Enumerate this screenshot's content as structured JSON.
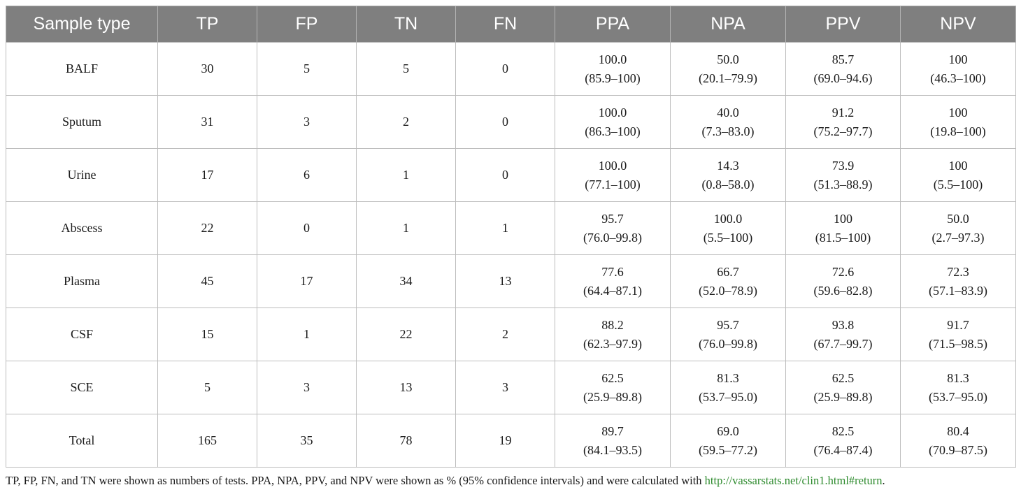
{
  "columns": [
    "Sample type",
    "TP",
    "FP",
    "TN",
    "FN",
    "PPA",
    "NPA",
    "PPV",
    "NPV"
  ],
  "rows": [
    {
      "sample": "BALF",
      "tp": "30",
      "fp": "5",
      "tn": "5",
      "fn": "0",
      "ppa": {
        "v": "100.0",
        "ci": "(85.9–100)"
      },
      "npa": {
        "v": "50.0",
        "ci": "(20.1–79.9)"
      },
      "ppv": {
        "v": "85.7",
        "ci": "(69.0–94.6)"
      },
      "npv": {
        "v": "100",
        "ci": "(46.3–100)"
      }
    },
    {
      "sample": "Sputum",
      "tp": "31",
      "fp": "3",
      "tn": "2",
      "fn": "0",
      "ppa": {
        "v": "100.0",
        "ci": "(86.3–100)"
      },
      "npa": {
        "v": "40.0",
        "ci": "(7.3–83.0)"
      },
      "ppv": {
        "v": "91.2",
        "ci": "(75.2–97.7)"
      },
      "npv": {
        "v": "100",
        "ci": "(19.8–100)"
      }
    },
    {
      "sample": "Urine",
      "tp": "17",
      "fp": "6",
      "tn": "1",
      "fn": "0",
      "ppa": {
        "v": "100.0",
        "ci": "(77.1–100)"
      },
      "npa": {
        "v": "14.3",
        "ci": "(0.8–58.0)"
      },
      "ppv": {
        "v": "73.9",
        "ci": "(51.3–88.9)"
      },
      "npv": {
        "v": "100",
        "ci": "(5.5–100)"
      }
    },
    {
      "sample": "Abscess",
      "tp": "22",
      "fp": "0",
      "tn": "1",
      "fn": "1",
      "ppa": {
        "v": "95.7",
        "ci": "(76.0–99.8)"
      },
      "npa": {
        "v": "100.0",
        "ci": "(5.5–100)"
      },
      "ppv": {
        "v": "100",
        "ci": "(81.5–100)"
      },
      "npv": {
        "v": "50.0",
        "ci": "(2.7–97.3)"
      }
    },
    {
      "sample": "Plasma",
      "tp": "45",
      "fp": "17",
      "tn": "34",
      "fn": "13",
      "ppa": {
        "v": "77.6",
        "ci": "(64.4–87.1)"
      },
      "npa": {
        "v": "66.7",
        "ci": "(52.0–78.9)"
      },
      "ppv": {
        "v": "72.6",
        "ci": "(59.6–82.8)"
      },
      "npv": {
        "v": "72.3",
        "ci": "(57.1–83.9)"
      }
    },
    {
      "sample": "CSF",
      "tp": "15",
      "fp": "1",
      "tn": "22",
      "fn": "2",
      "ppa": {
        "v": "88.2",
        "ci": "(62.3–97.9)"
      },
      "npa": {
        "v": "95.7",
        "ci": "(76.0–99.8)"
      },
      "ppv": {
        "v": "93.8",
        "ci": "(67.7–99.7)"
      },
      "npv": {
        "v": "91.7",
        "ci": "(71.5–98.5)"
      }
    },
    {
      "sample": "SCE",
      "tp": "5",
      "fp": "3",
      "tn": "13",
      "fn": "3",
      "ppa": {
        "v": "62.5",
        "ci": "(25.9–89.8)"
      },
      "npa": {
        "v": "81.3",
        "ci": "(53.7–95.0)"
      },
      "ppv": {
        "v": "62.5",
        "ci": "(25.9–89.8)"
      },
      "npv": {
        "v": "81.3",
        "ci": "(53.7–95.0)"
      }
    },
    {
      "sample": "Total",
      "tp": "165",
      "fp": "35",
      "tn": "78",
      "fn": "19",
      "ppa": {
        "v": "89.7",
        "ci": "(84.1–93.5)"
      },
      "npa": {
        "v": "69.0",
        "ci": "(59.5–77.2)"
      },
      "ppv": {
        "v": "82.5",
        "ci": "(76.4–87.4)"
      },
      "npv": {
        "v": "80.4",
        "ci": "(70.9–87.5)"
      }
    }
  ],
  "footnote": {
    "text": "TP, FP, FN, and TN were shown as numbers of tests. PPA, NPA, PPV, and NPV were shown as % (95% confidence intervals) and were calculated with ",
    "link": "http://vassarstats.net/clin1.html#return",
    "end": "."
  },
  "colors": {
    "header_bg": "#7f7f7f",
    "header_text": "#ffffff",
    "link": "#2e8b2e"
  }
}
